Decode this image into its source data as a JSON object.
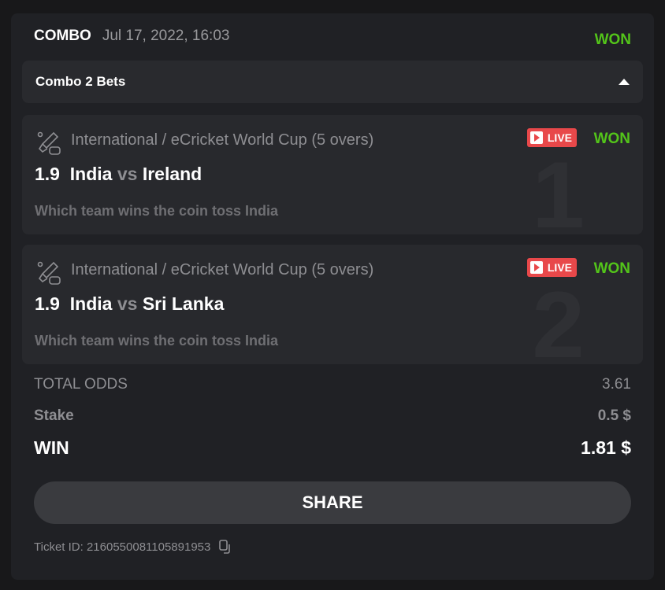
{
  "header": {
    "type": "COMBO",
    "datetime": "Jul 17, 2022, 16:03",
    "status": "WON"
  },
  "accordion": {
    "title": "Combo 2 Bets",
    "icon": "chevron-up-icon"
  },
  "bets": [
    {
      "icon": "cricket-gamepad-icon",
      "league": "International / eCricket World Cup (5 overs)",
      "live": "LIVE",
      "status": "WON",
      "odds": "1.9",
      "team1": "India",
      "vs": "vs",
      "team2": "Ireland",
      "selection": "Which team wins the coin toss India",
      "index": "1"
    },
    {
      "icon": "cricket-gamepad-icon",
      "league": "International / eCricket World Cup (5 overs)",
      "live": "LIVE",
      "status": "WON",
      "odds": "1.9",
      "team1": "India",
      "vs": "vs",
      "team2": "Sri Lanka",
      "selection": "Which team wins the coin toss India",
      "index": "2"
    }
  ],
  "summary": {
    "total_odds_label": "TOTAL ODDS",
    "total_odds": "3.61",
    "stake_label": "Stake",
    "stake": "0.5 $",
    "win_label": "WIN",
    "win": "1.81 $"
  },
  "share_label": "SHARE",
  "ticket": {
    "label": "Ticket ID:",
    "id": "2160550081105891953",
    "icon": "copy-icon"
  },
  "colors": {
    "won": "#53c41a",
    "live": "#e8484a"
  }
}
